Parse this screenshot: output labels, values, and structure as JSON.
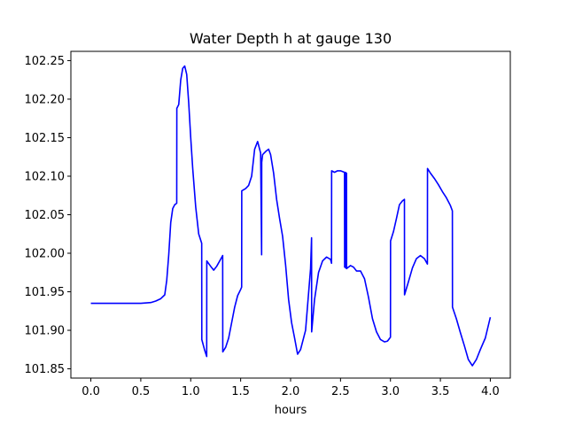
{
  "chart_data": {
    "type": "line",
    "title": "Water Depth h at gauge 130",
    "xlabel": "hours",
    "ylabel": "",
    "xlim": [
      -0.2,
      4.2
    ],
    "ylim": [
      101.838,
      102.262
    ],
    "x_ticks": [
      0.0,
      0.5,
      1.0,
      1.5,
      2.0,
      2.5,
      3.0,
      3.5,
      4.0
    ],
    "x_tick_labels": [
      "0.0",
      "0.5",
      "1.0",
      "1.5",
      "2.0",
      "2.5",
      "3.0",
      "3.5",
      "4.0"
    ],
    "y_ticks": [
      101.85,
      101.9,
      101.95,
      102.0,
      102.05,
      102.1,
      102.15,
      102.2,
      102.25
    ],
    "y_tick_labels": [
      "101.85",
      "101.90",
      "101.95",
      "102.00",
      "102.05",
      "102.10",
      "102.15",
      "102.20",
      "102.25"
    ],
    "grid": false,
    "series": [
      {
        "color": "#0000ff",
        "x": [
          0.0,
          0.3,
          0.5,
          0.6,
          0.65,
          0.7,
          0.74,
          0.76,
          0.78,
          0.8,
          0.82,
          0.84,
          0.86,
          0.861,
          0.88,
          0.9,
          0.92,
          0.94,
          0.96,
          0.98,
          1.0,
          1.02,
          1.05,
          1.08,
          1.11,
          1.111,
          1.14,
          1.16,
          1.161,
          1.2,
          1.23,
          1.26,
          1.29,
          1.32,
          1.321,
          1.35,
          1.38,
          1.41,
          1.44,
          1.47,
          1.5,
          1.51,
          1.511,
          1.55,
          1.58,
          1.61,
          1.64,
          1.67,
          1.7,
          1.71,
          1.711,
          1.72,
          1.75,
          1.78,
          1.8,
          1.83,
          1.86,
          1.89,
          1.92,
          1.95,
          1.98,
          2.01,
          2.04,
          2.07,
          2.1,
          2.15,
          2.2,
          2.21,
          2.211,
          2.24,
          2.28,
          2.32,
          2.36,
          2.4,
          2.41,
          2.411,
          2.44,
          2.47,
          2.5,
          2.54,
          2.541,
          2.55,
          2.551,
          2.56,
          2.561,
          2.57,
          2.6,
          2.63,
          2.66,
          2.7,
          2.74,
          2.78,
          2.82,
          2.86,
          2.9,
          2.94,
          2.97,
          3.0,
          3.001,
          3.03,
          3.06,
          3.09,
          3.12,
          3.14,
          3.141,
          3.18,
          3.22,
          3.26,
          3.3,
          3.34,
          3.37,
          3.371,
          3.4,
          3.44,
          3.48,
          3.52,
          3.56,
          3.6,
          3.62,
          3.621,
          3.66,
          3.7,
          3.74,
          3.78,
          3.82,
          3.86,
          3.9,
          3.95,
          4.0
        ],
        "y": [
          101.935,
          101.935,
          101.935,
          101.936,
          101.938,
          101.941,
          101.946,
          101.965,
          101.998,
          102.04,
          102.058,
          102.063,
          102.065,
          102.188,
          102.193,
          102.225,
          102.24,
          102.243,
          102.232,
          102.195,
          102.15,
          102.11,
          102.06,
          102.025,
          102.013,
          101.888,
          101.874,
          101.866,
          101.99,
          101.983,
          101.978,
          101.983,
          101.99,
          101.997,
          101.872,
          101.878,
          101.89,
          101.91,
          101.93,
          101.945,
          101.953,
          101.956,
          102.081,
          102.084,
          102.088,
          102.1,
          102.135,
          102.145,
          102.13,
          101.998,
          102.118,
          102.128,
          102.132,
          102.135,
          102.128,
          102.104,
          102.07,
          102.045,
          102.022,
          101.985,
          101.94,
          101.91,
          101.89,
          101.869,
          101.875,
          101.9,
          101.98,
          102.02,
          101.898,
          101.94,
          101.975,
          101.99,
          101.995,
          101.992,
          101.987,
          102.107,
          102.105,
          102.107,
          102.107,
          102.105,
          101.982,
          102.105,
          101.981,
          102.104,
          101.98,
          101.981,
          101.984,
          101.982,
          101.977,
          101.977,
          101.967,
          101.943,
          101.915,
          101.898,
          101.888,
          101.885,
          101.886,
          101.891,
          102.016,
          102.028,
          102.045,
          102.063,
          102.068,
          102.07,
          101.946,
          101.963,
          101.981,
          101.993,
          101.997,
          101.993,
          101.986,
          102.11,
          102.104,
          102.097,
          102.089,
          102.08,
          102.072,
          102.062,
          102.055,
          101.93,
          101.915,
          101.897,
          101.88,
          101.862,
          101.854,
          101.862,
          101.875,
          101.89,
          101.917
        ]
      }
    ]
  }
}
